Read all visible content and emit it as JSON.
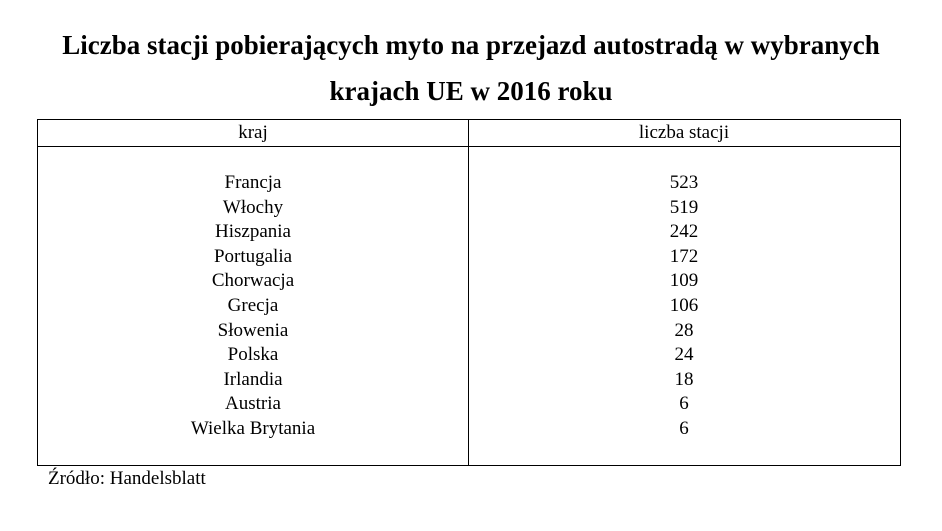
{
  "header": {
    "title": "Liczba stacji pobierających myto na przejazd autostradą w wybranych krajach UE w 2016 roku"
  },
  "table": {
    "columns": [
      "kraj",
      "liczba stacji"
    ],
    "rows": [
      [
        "Francja",
        523
      ],
      [
        "Włochy",
        519
      ],
      [
        "Hiszpania",
        242
      ],
      [
        "Portugalia",
        172
      ],
      [
        "Chorwacja",
        109
      ],
      [
        "Grecja",
        106
      ],
      [
        "Słowenia",
        28
      ],
      [
        "Polska",
        24
      ],
      [
        "Irlandia",
        18
      ],
      [
        "Austria",
        6
      ],
      [
        "Wielka Brytania",
        6
      ]
    ]
  },
  "source": "Źródło: Handelsblatt"
}
